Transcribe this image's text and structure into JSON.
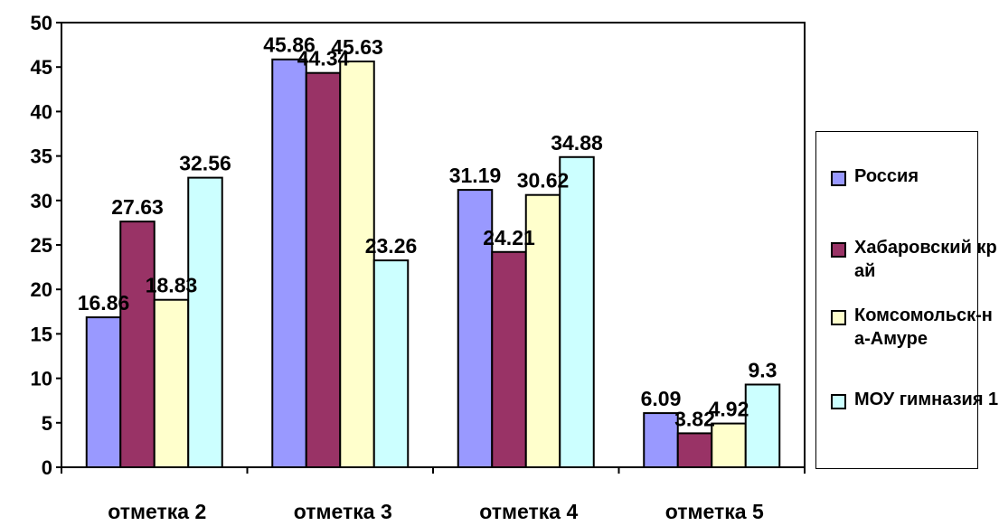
{
  "chart_data": {
    "type": "bar",
    "categories": [
      "отметка 2",
      "отметка 3",
      "отметка 4",
      "отметка 5"
    ],
    "series": [
      {
        "name": "Россия",
        "values": [
          16.86,
          45.86,
          31.19,
          6.09
        ],
        "color": "#9999FF"
      },
      {
        "name": "Хабаровский край",
        "values": [
          27.63,
          44.34,
          24.21,
          3.82
        ],
        "color": "#993366"
      },
      {
        "name": "Комсомольск-на-Амуре",
        "values": [
          18.83,
          45.63,
          30.62,
          4.92
        ],
        "color": "#FFFFCC"
      },
      {
        "name": "МОУ гимназия 1",
        "values": [
          32.56,
          23.26,
          34.88,
          9.3
        ],
        "color": "#CCFFFF"
      }
    ],
    "data_labels": [
      [
        "16.86",
        "45.86",
        "31.19",
        "6.09"
      ],
      [
        "27.63",
        "44.34",
        "24.21",
        "3.82"
      ],
      [
        "18.83",
        "45.63",
        "30.62",
        "4.92"
      ],
      [
        "32.56",
        "23.26",
        "34.88",
        "9.3"
      ]
    ],
    "y_ticks": [
      "0",
      "5",
      "10",
      "15",
      "20",
      "25",
      "30",
      "35",
      "40",
      "45",
      "50"
    ],
    "ylim": [
      0,
      50
    ],
    "grid": false,
    "legend_position": "right"
  }
}
